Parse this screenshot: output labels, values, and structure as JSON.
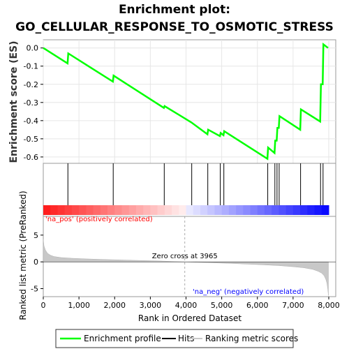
{
  "title_line1": "Enrichment plot:",
  "title_line2": "GO_CELLULAR_RESPONSE_TO_OSMOTIC_STRESS",
  "chart_data": [
    {
      "type": "line",
      "name": "enrichment",
      "ylabel": "Enrichment score (ES)",
      "xlim": [
        0,
        8000
      ],
      "ylim": [
        -0.635,
        0.045
      ],
      "y_ticks": [
        "0.0",
        "-0.1",
        "-0.2",
        "-0.3",
        "-0.4",
        "-0.5",
        "-0.6"
      ],
      "y_tick_values": [
        0.0,
        -0.1,
        -0.2,
        -0.3,
        -0.4,
        -0.5,
        -0.6
      ],
      "grid": true,
      "series": [
        {
          "name": "Enrichment profile",
          "color": "#00ff00",
          "x": [
            0,
            680,
            700,
            1950,
            1970,
            3380,
            3400,
            4150,
            4600,
            4620,
            4950,
            4970,
            5050,
            5070,
            6280,
            6300,
            6480,
            6500,
            6540,
            6560,
            6600,
            6620,
            7200,
            7220,
            7760,
            7780,
            7830,
            7850,
            7980
          ],
          "y": [
            0.0,
            -0.085,
            -0.03,
            -0.185,
            -0.152,
            -0.33,
            -0.32,
            -0.41,
            -0.475,
            -0.45,
            -0.485,
            -0.468,
            -0.48,
            -0.458,
            -0.61,
            -0.548,
            -0.578,
            -0.51,
            -0.51,
            -0.44,
            -0.44,
            -0.375,
            -0.45,
            -0.338,
            -0.405,
            -0.2,
            -0.2,
            0.02,
            0.0
          ]
        }
      ]
    },
    {
      "type": "scatter",
      "name": "hits",
      "x_hits": [
        690,
        1960,
        3390,
        4160,
        4610,
        4960,
        5060,
        6290,
        6490,
        6550,
        6610,
        7210,
        7770,
        7840
      ]
    },
    {
      "type": "area",
      "name": "ranked-metric",
      "xlabel": "Rank in Ordered Dataset",
      "ylabel": "Ranked list metric (PreRanked)",
      "xlim": [
        0,
        8000
      ],
      "ylim": [
        -6.5,
        8.5
      ],
      "x_ticks": [
        "0",
        "1,000",
        "2,000",
        "3,000",
        "4,000",
        "5,000",
        "6,000",
        "7,000",
        "8,000"
      ],
      "x_tick_values": [
        0,
        1000,
        2000,
        3000,
        4000,
        5000,
        6000,
        7000,
        8000
      ],
      "y_ticks": [
        "5",
        "0",
        "-5"
      ],
      "y_tick_values": [
        5,
        0,
        -5
      ],
      "x": [
        0,
        20,
        60,
        120,
        200,
        300,
        500,
        800,
        1200,
        1800,
        2500,
        3200,
        3965,
        4600,
        5300,
        6000,
        6600,
        7000,
        7300,
        7550,
        7700,
        7800,
        7870,
        7920,
        7950,
        7975,
        7990
      ],
      "y": [
        4.2,
        3.0,
        2.2,
        1.6,
        1.25,
        1.0,
        0.8,
        0.68,
        0.55,
        0.42,
        0.3,
        0.18,
        0.0,
        -0.15,
        -0.3,
        -0.5,
        -0.7,
        -0.9,
        -1.1,
        -1.4,
        -1.75,
        -2.1,
        -2.6,
        -3.3,
        -4.0,
        -5.2,
        -6.3
      ],
      "zero_cross_label": "Zero cross at 3965",
      "zero_cross": 3965,
      "pos_label": "'na_pos' (positively correlated)",
      "neg_label": "'na_neg' (negatively correlated)",
      "pos_color": "#ff0000",
      "neg_color": "#0000ff",
      "fill_color": "#c8c8c8"
    }
  ],
  "legend": {
    "items": [
      {
        "label": "Enrichment profile",
        "color": "#00ff00"
      },
      {
        "label": "Hits",
        "color": "#000000"
      },
      {
        "label": "Ranking metric scores",
        "color": "#c8c8c8"
      }
    ]
  }
}
